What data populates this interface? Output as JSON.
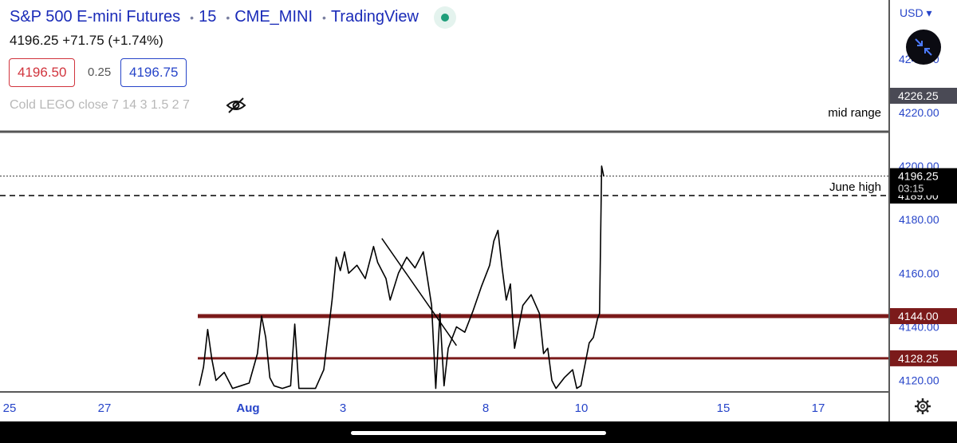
{
  "header": {
    "symbol_name": "S&P 500 E-mini Futures",
    "interval": "15",
    "exchange": "CME_MINI",
    "source": "TradingView",
    "last_price": "4196.25",
    "change": "+71.75 (+1.74%)",
    "bid": "4196.50",
    "spread": "0.25",
    "ask": "4196.75",
    "indicator": "Cold LEGO close 7 14 3 1.5 2 7"
  },
  "axis": {
    "currency": "USD",
    "currency_icon": "chevron-down-icon",
    "y_ticks": [
      "4240.00",
      "4220.00",
      "4200.00",
      "4180.00",
      "4160.00",
      "4140.00",
      "4120.00"
    ],
    "x_ticks": [
      "25",
      "27",
      "Aug",
      "3",
      "8",
      "10",
      "15",
      "17"
    ]
  },
  "colors": {
    "level_line": "#7b1a1a",
    "axis_text": "#2745c9",
    "price_series": "#000000"
  },
  "chart_data": {
    "type": "line",
    "title": "S&P 500 E-mini Futures · 15 · CME_MINI",
    "ylabel": "",
    "xlabel": "",
    "ylim": [
      4116,
      4262
    ],
    "x_categories": [
      "25",
      "27",
      "Aug",
      "3",
      "8",
      "10",
      "15",
      "17"
    ],
    "series": [
      {
        "values": [
          [
            0.0,
            4118
          ],
          [
            0.01,
            4125
          ],
          [
            0.02,
            4139
          ],
          [
            0.03,
            4128
          ],
          [
            0.04,
            4120
          ],
          [
            0.06,
            4123
          ],
          [
            0.08,
            4117
          ],
          [
            0.1,
            4118
          ],
          [
            0.12,
            4119
          ],
          [
            0.14,
            4130
          ],
          [
            0.15,
            4144
          ],
          [
            0.16,
            4136
          ],
          [
            0.17,
            4121
          ],
          [
            0.18,
            4118
          ],
          [
            0.2,
            4117
          ],
          [
            0.22,
            4118
          ],
          [
            0.23,
            4141
          ],
          [
            0.24,
            4117
          ],
          [
            0.26,
            4117
          ],
          [
            0.28,
            4117
          ],
          [
            0.3,
            4124
          ],
          [
            0.32,
            4150
          ],
          [
            0.33,
            4166
          ],
          [
            0.34,
            4161
          ],
          [
            0.35,
            4168
          ],
          [
            0.36,
            4160
          ],
          [
            0.38,
            4163
          ],
          [
            0.4,
            4158
          ],
          [
            0.42,
            4170
          ],
          [
            0.43,
            4164
          ],
          [
            0.45,
            4158
          ],
          [
            0.46,
            4150
          ],
          [
            0.48,
            4160
          ],
          [
            0.5,
            4166
          ],
          [
            0.52,
            4162
          ],
          [
            0.54,
            4168
          ],
          [
            0.55,
            4158
          ],
          [
            0.56,
            4148
          ],
          [
            0.57,
            4117
          ],
          [
            0.58,
            4145
          ],
          [
            0.59,
            4118
          ],
          [
            0.6,
            4132
          ],
          [
            0.62,
            4140
          ],
          [
            0.64,
            4138
          ],
          [
            0.66,
            4146
          ],
          [
            0.68,
            4155
          ],
          [
            0.7,
            4163
          ],
          [
            0.71,
            4172
          ],
          [
            0.72,
            4176
          ],
          [
            0.73,
            4162
          ],
          [
            0.74,
            4150
          ],
          [
            0.75,
            4156
          ],
          [
            0.76,
            4132
          ],
          [
            0.78,
            4148
          ],
          [
            0.8,
            4152
          ],
          [
            0.82,
            4145
          ],
          [
            0.83,
            4130
          ],
          [
            0.84,
            4132
          ],
          [
            0.85,
            4120
          ],
          [
            0.86,
            4117
          ],
          [
            0.88,
            4121
          ],
          [
            0.9,
            4124
          ],
          [
            0.91,
            4117
          ],
          [
            0.92,
            4118
          ],
          [
            0.93,
            4126
          ],
          [
            0.94,
            4134
          ],
          [
            0.95,
            4136
          ],
          [
            0.96,
            4143
          ],
          [
            0.965,
            4145
          ],
          [
            0.97,
            4200
          ],
          [
            0.975,
            4196.25
          ]
        ]
      }
    ],
    "horizontal_levels": [
      {
        "label": "4226.25",
        "value": 4226.25,
        "style": "solid",
        "color": "#555555",
        "annotation": ""
      },
      {
        "label": "",
        "value": 4222,
        "style": "none",
        "color": "#000000",
        "annotation": "mid range"
      },
      {
        "label": "4189.00",
        "value": 4189.0,
        "style": "dashed",
        "color": "#000000",
        "annotation": "June high"
      },
      {
        "label": "4144.00",
        "value": 4144.0,
        "style": "solid",
        "color": "#7b1a1a",
        "annotation": ""
      },
      {
        "label": "4128.25",
        "value": 4128.25,
        "style": "solid",
        "color": "#7b1a1a",
        "annotation": ""
      }
    ],
    "trendline": {
      "from": [
        0.44,
        4173
      ],
      "to": [
        0.62,
        4133
      ]
    },
    "current_price": {
      "value": 4196.25,
      "countdown": "03:15"
    }
  }
}
